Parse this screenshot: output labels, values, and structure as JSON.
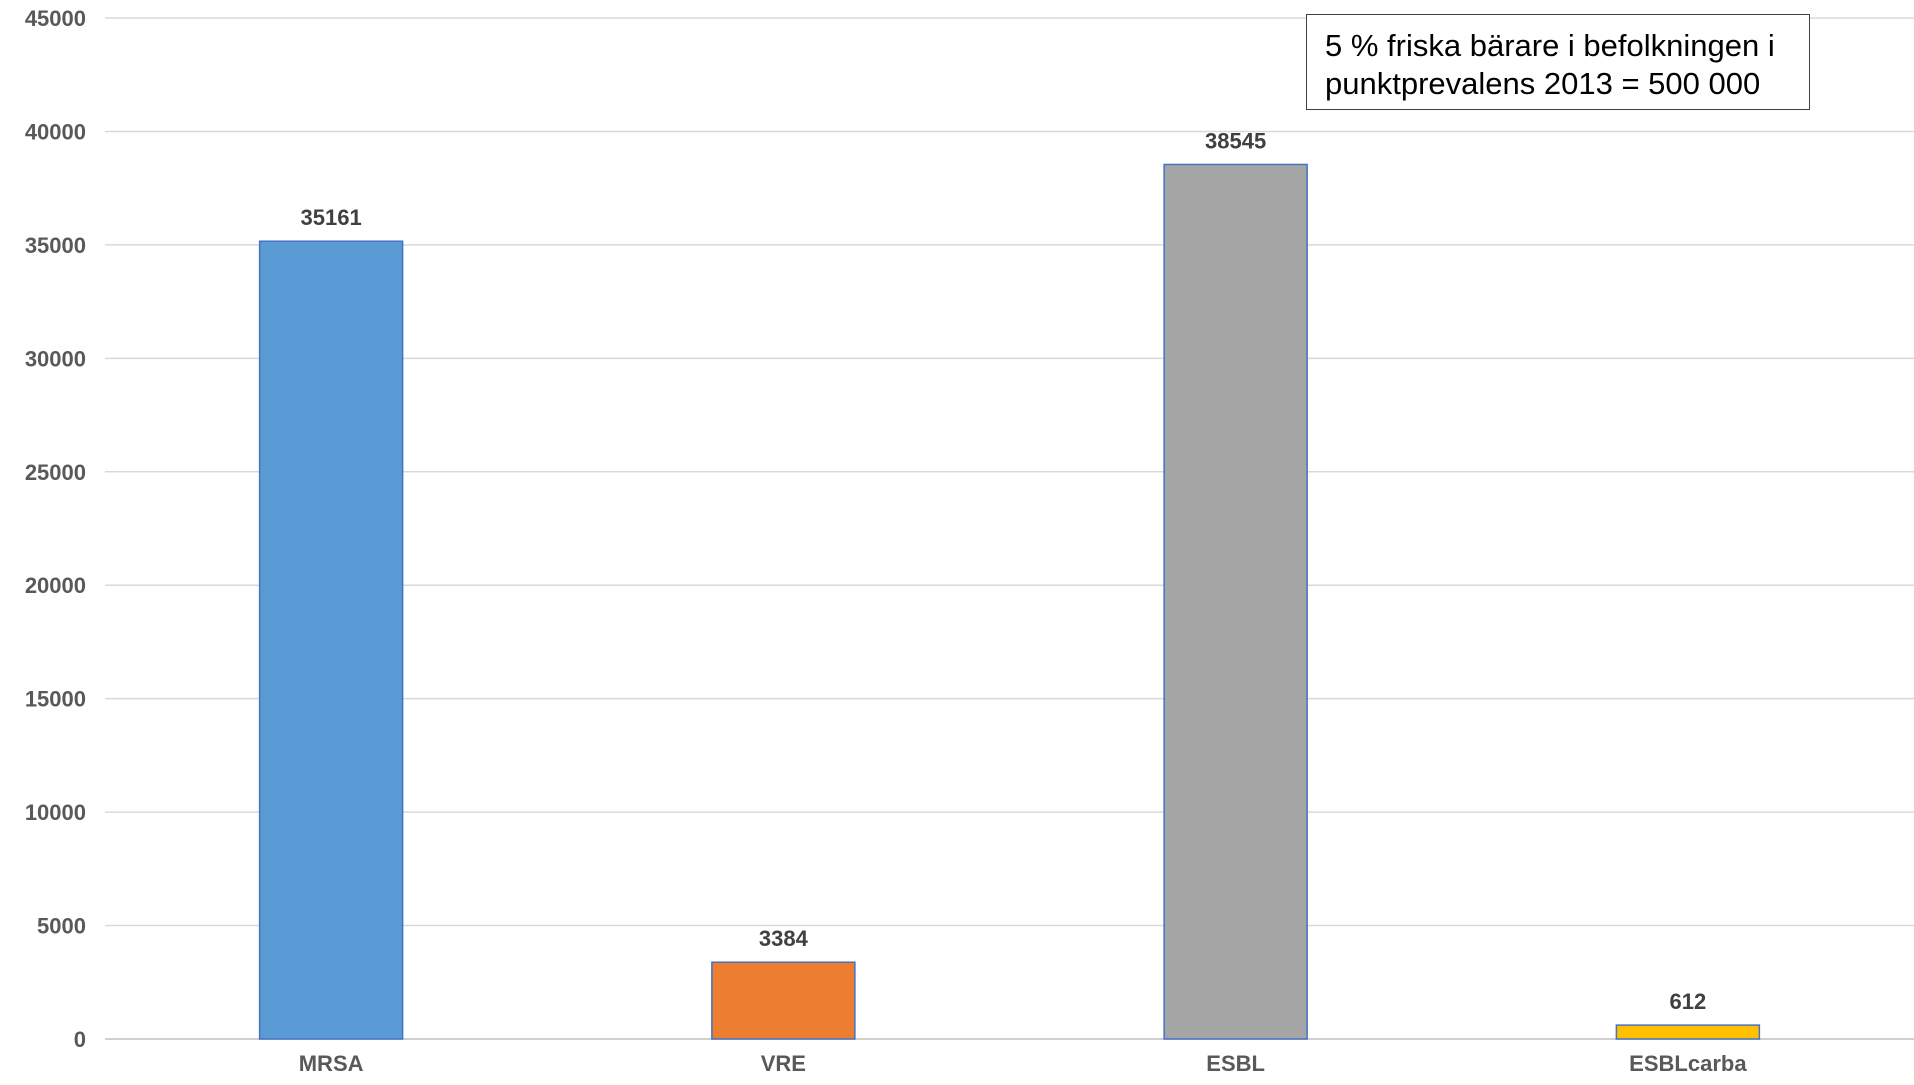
{
  "chart_data": {
    "type": "bar",
    "categories": [
      "MRSA",
      "VRE",
      "ESBL",
      "ESBLcarba"
    ],
    "values": [
      35161,
      3384,
      38545,
      612
    ],
    "data_labels": [
      "35161",
      "3384",
      "38545",
      "612"
    ],
    "colors": [
      "#5b9bd5",
      "#ed7d31",
      "#a5a5a5",
      "#ffc000"
    ],
    "bar_border_color": "#4472c4",
    "title": "",
    "xlabel": "",
    "ylabel": "",
    "ylim": [
      0,
      45000
    ],
    "yticks": [
      0,
      5000,
      10000,
      15000,
      20000,
      25000,
      30000,
      35000,
      40000,
      45000
    ],
    "ytick_labels": [
      "0",
      "5000",
      "10000",
      "15000",
      "20000",
      "25000",
      "30000",
      "35000",
      "40000",
      "45000"
    ],
    "grid": true,
    "legend": "none",
    "annotation": {
      "line1": "5 % friska bärare i befolkningen i",
      "line2": "punktprevalens 2013 = 500 000"
    }
  }
}
